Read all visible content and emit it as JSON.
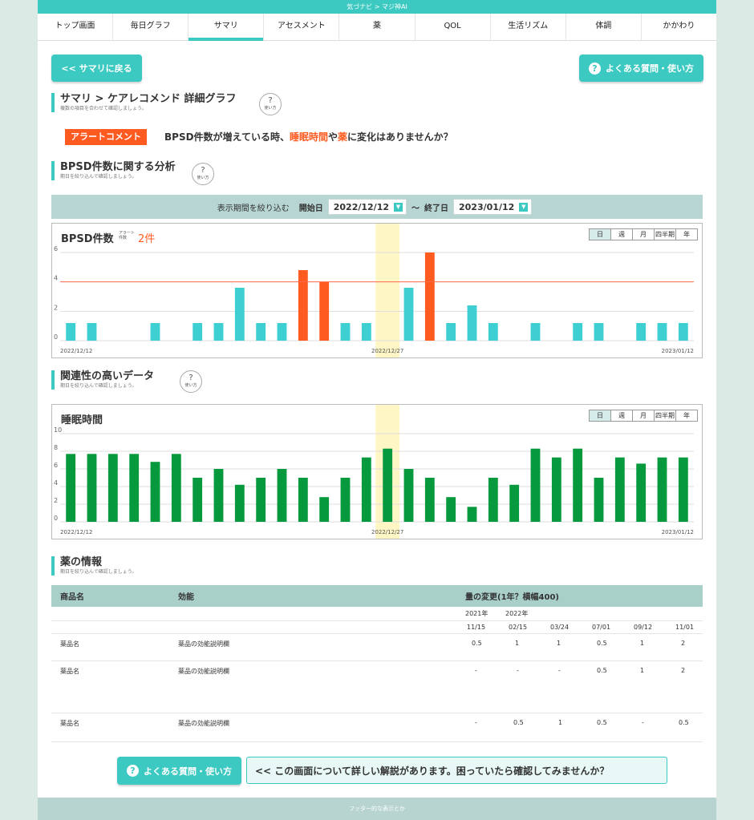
{
  "app": {
    "title": "気づナビ > マジ神AI"
  },
  "tabs": [
    {
      "label": "トップ画面"
    },
    {
      "label": "毎日グラフ"
    },
    {
      "label": "サマリ",
      "active": true
    },
    {
      "label": "アセスメント"
    },
    {
      "label": "薬"
    },
    {
      "label": "QOL"
    },
    {
      "label": "生活リズム"
    },
    {
      "label": "体調"
    },
    {
      "label": "かかわり"
    }
  ],
  "buttons": {
    "back": "<< サマリに戻る",
    "faq": "よくある質問・使い方",
    "faq_bottom": "よくある質問・使い方",
    "help_q": "?",
    "help_label": "使い方"
  },
  "section_main": {
    "title": "サマリ > ケアレコメンド 詳細グラフ",
    "subtitle": "複数の項目を合わせて確認しましょう。"
  },
  "alert": {
    "badge": "アラートコメント",
    "text_parts": [
      "BPSD件数が増えている時、",
      "睡眠時間",
      "や",
      "薬",
      "に変化はありませんか？"
    ]
  },
  "section_bpsd": {
    "title": "BPSD件数に関する分析",
    "subtitle": "期日を絞り込んで確認しましょう。"
  },
  "filter": {
    "label": "表示期間を絞り込む",
    "start_label": "開始日",
    "start_value": "2022/12/12",
    "separator": "〜",
    "end_label": "終了日",
    "end_value": "2023/01/12"
  },
  "period_buttons": [
    "日",
    "週",
    "月",
    "四半期",
    "年"
  ],
  "section_related": {
    "title": "関連性の高いデータ",
    "subtitle": "期日を絞り込んで確認しましょう。"
  },
  "section_med": {
    "title": "薬の情報",
    "subtitle": "期日を絞り込んで確認しましょう。"
  },
  "chart_data": [
    {
      "type": "bar",
      "title": "BPSD件数",
      "alert_label": [
        "アラート",
        "件数"
      ],
      "alert_count_text": "2件",
      "alert_threshold": 4,
      "ylim": [
        0,
        6
      ],
      "yticks": [
        0,
        2,
        4,
        6
      ],
      "x_tick_labels": [
        "2022/12/12",
        "2022/12/27",
        "2023/01/12"
      ],
      "highlight_index": 15,
      "values": [
        1.2,
        1.2,
        null,
        null,
        1.2,
        null,
        1.2,
        1.2,
        3.6,
        1.2,
        1.2,
        4.8,
        4.0,
        1.2,
        1.2,
        null,
        3.6,
        6.0,
        1.2,
        2.4,
        1.2,
        null,
        1.2,
        null,
        1.2,
        1.2,
        null,
        1.2,
        1.2,
        1.2
      ],
      "colors": {
        "normal": "#3ecfd3",
        "alert": "#ff5a1f",
        "highlight": "#fff6c6",
        "threshold": "#ff6a4a"
      }
    },
    {
      "type": "bar",
      "title": "睡眠時間",
      "ylim": [
        0,
        10
      ],
      "yticks": [
        0,
        2,
        4,
        6,
        8,
        10
      ],
      "x_tick_labels": [
        "2022/12/12",
        "2022/12/27",
        "2023/01/12"
      ],
      "highlight_index": 15,
      "values": [
        7.7,
        7.7,
        7.7,
        7.7,
        6.8,
        7.7,
        5.0,
        6.0,
        4.2,
        5.0,
        6.0,
        5.0,
        2.8,
        5.0,
        7.3,
        8.3,
        6.0,
        5.0,
        2.8,
        1.7,
        5.0,
        4.2,
        8.3,
        7.3,
        8.3,
        5.0,
        7.3,
        6.6,
        7.3,
        7.3
      ],
      "colors": {
        "bar": "#07993d",
        "highlight": "#fff6c6"
      }
    }
  ],
  "med_table": {
    "headers": [
      "商品名",
      "効能",
      "量の変更(1年？横幅400)"
    ],
    "years": [
      "2021年",
      "2022年"
    ],
    "dates": [
      "11/15",
      "02/15",
      "03/24",
      "07/01",
      "09/12",
      "11/01"
    ],
    "rows": [
      {
        "name": "薬品名",
        "effect": "薬品の効能説明欄",
        "values": [
          "0.5",
          "1",
          "1",
          "0.5",
          "1",
          "2"
        ]
      },
      {
        "name": "薬品名",
        "effect": "薬品の効能説明欄",
        "values": [
          "-",
          "-",
          "-",
          "0.5",
          "1",
          "2"
        ]
      },
      {
        "name": "薬品名",
        "effect": "薬品の効能説明欄",
        "values": [
          "-",
          "0.5",
          "1",
          "0.5",
          "-",
          "0.5"
        ]
      }
    ]
  },
  "explain_text": "<< この画面について詳しい解説があります。困っていたら確認してみませんか？",
  "footer": "フッター的な表示とか"
}
